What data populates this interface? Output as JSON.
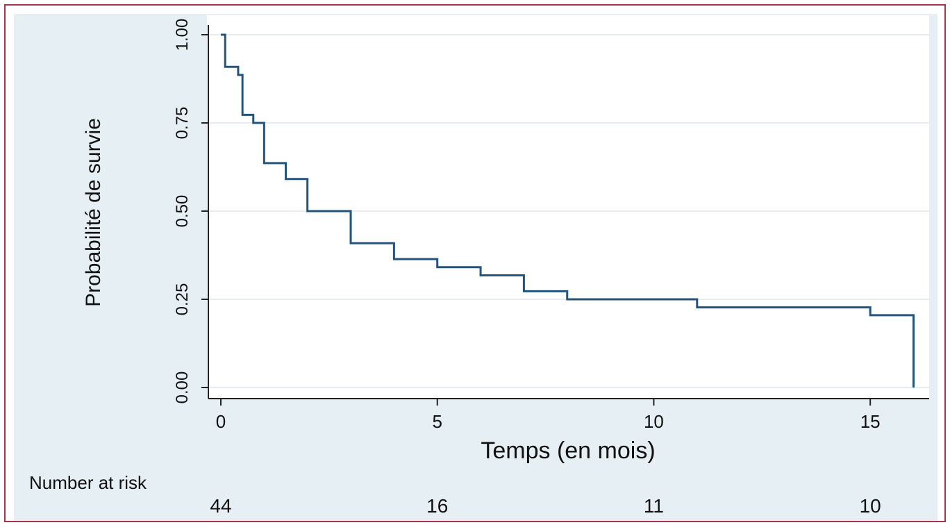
{
  "chart_data": {
    "type": "line",
    "subtype": "kaplan-meier-step",
    "title": "",
    "xlabel": "Temps (en mois)",
    "ylabel": "Probabilité de survie",
    "xlim": [
      0,
      16.2
    ],
    "ylim": [
      0,
      1
    ],
    "xticks": [
      0,
      5,
      10,
      15
    ],
    "xtick_labels": [
      "0",
      "5",
      "10",
      "15"
    ],
    "yticks": [
      0,
      0.25,
      0.5,
      0.75,
      1.0
    ],
    "ytick_labels": [
      "0.00",
      "0.25",
      "0.50",
      "0.75",
      "1.00"
    ],
    "grid": "horizontal",
    "legend": "none",
    "series": [
      {
        "color": "#23547e",
        "points": [
          [
            0,
            1.0
          ],
          [
            0.1,
            0.909
          ],
          [
            0.4,
            0.886
          ],
          [
            0.5,
            0.773
          ],
          [
            0.75,
            0.75
          ],
          [
            1.0,
            0.636
          ],
          [
            1.5,
            0.591
          ],
          [
            2.0,
            0.5
          ],
          [
            3.0,
            0.409
          ],
          [
            4.0,
            0.364
          ],
          [
            5.0,
            0.341
          ],
          [
            6.0,
            0.318
          ],
          [
            7.0,
            0.273
          ],
          [
            8.0,
            0.25
          ],
          [
            11.0,
            0.227
          ],
          [
            15.0,
            0.205
          ],
          [
            16.0,
            0.0
          ]
        ]
      }
    ],
    "risk_table": {
      "label": "Number at risk",
      "times": [
        0,
        5,
        10,
        15
      ],
      "counts": [
        "44",
        "16",
        "11",
        "10"
      ]
    }
  },
  "colors": {
    "background": "#e6eff3",
    "plot_region": "#ffffff",
    "border": "#a83248",
    "curve": "#23547e"
  }
}
